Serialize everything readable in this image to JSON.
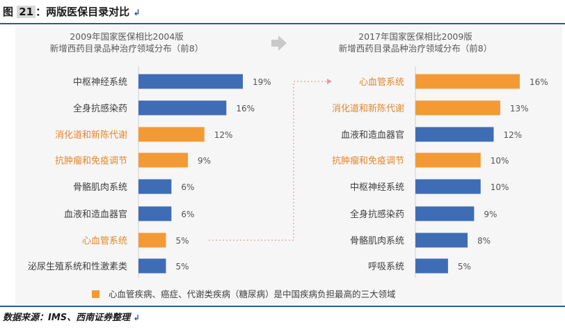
{
  "figure": {
    "label": "图",
    "number": "21",
    "title": "：两版医保目录对比",
    "source": "数据来源：IMS、西南证券整理"
  },
  "colors": {
    "blue": "#3f6db5",
    "orange": "#f39a35",
    "label_dark": "#404040",
    "label_orange": "#e5862a",
    "arrow": "#c9c9c9"
  },
  "chart_data": [
    {
      "type": "bar",
      "orientation": "horizontal",
      "title": "2009年国家医保相比2004版\n新增西药目录品种治疗领域分布（前8）",
      "categories": [
        "中枢神经系统",
        "全身抗感染药",
        "消化道和新陈代谢",
        "抗肿瘤和免疫调节",
        "骨骼肌肉系统",
        "血液和造血器官",
        "心血管系统",
        "泌尿生殖系统和性激素类"
      ],
      "values": [
        19,
        16,
        12,
        9,
        6,
        6,
        5,
        5
      ],
      "value_labels": [
        "19%",
        "16%",
        "12%",
        "9%",
        "6%",
        "6%",
        "5%",
        "5%"
      ],
      "highlight": [
        false,
        false,
        true,
        true,
        false,
        false,
        true,
        false
      ],
      "unit": "%",
      "xlim": [
        0,
        20
      ]
    },
    {
      "type": "bar",
      "orientation": "horizontal",
      "title": "2017年国家医保相比2009版\n新增西药目录品种治疗领域分布（前8）",
      "categories": [
        "心血管系统",
        "消化道和新陈代谢",
        "血液和造血器官",
        "抗肿瘤和免疫调节",
        "中枢神经系统",
        "全身抗感染药",
        "骨骼肌肉系统",
        "呼吸系统"
      ],
      "values": [
        16,
        13,
        12,
        10,
        10,
        9,
        8,
        5
      ],
      "value_labels": [
        "16%",
        "13%",
        "12%",
        "10%",
        "10%",
        "9%",
        "8%",
        "5%"
      ],
      "highlight": [
        true,
        true,
        false,
        true,
        false,
        false,
        false,
        false
      ],
      "unit": "%",
      "xlim": [
        0,
        20
      ]
    }
  ],
  "legend": {
    "text": "心血管疾病、癌症、代谢类疾病（糖尿病）是中国疾病负担最高的三大领域"
  }
}
